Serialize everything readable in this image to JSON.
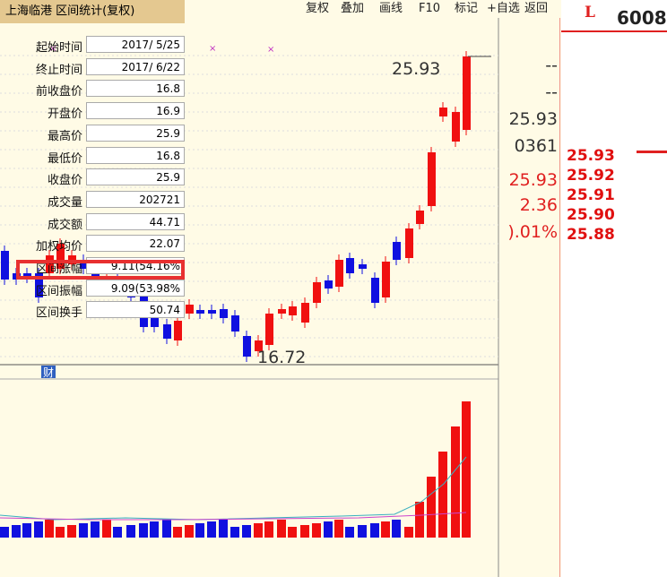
{
  "toolbar": [
    "复权",
    "叠加",
    "画线",
    "F10",
    "标记",
    "+自选",
    "返回"
  ],
  "symbol": {
    "marker": "L",
    "code": "6008"
  },
  "chart": {
    "high_label": "25.93",
    "low_label": "16.72",
    "finance_marker": "财"
  },
  "quote": [
    "--",
    "--",
    "25.93",
    "0361",
    "25.93",
    "2.36",
    ").01%"
  ],
  "order_book": [
    "25.93",
    "25.92",
    "25.91",
    "25.90",
    "25.88"
  ],
  "dialog": {
    "title": "上海临港 区间统计(复权)",
    "rows": [
      [
        "起始时间",
        "2017/ 5/25"
      ],
      [
        "终止时间",
        "2017/ 6/22"
      ],
      [
        "前收盘价",
        "16.8"
      ],
      [
        "开盘价",
        "16.9"
      ],
      [
        "最高价",
        "25.9"
      ],
      [
        "最低价",
        "16.8"
      ],
      [
        "收盘价",
        "25.9"
      ],
      [
        "成交量",
        "202721"
      ],
      [
        "成交额",
        "44.71"
      ],
      [
        "加权均价",
        "22.07"
      ],
      [
        "区间涨幅",
        "9.11(54.16%"
      ],
      [
        "区间振幅",
        "9.09(53.98%"
      ],
      [
        "区间换手",
        "50.74"
      ]
    ]
  }
}
